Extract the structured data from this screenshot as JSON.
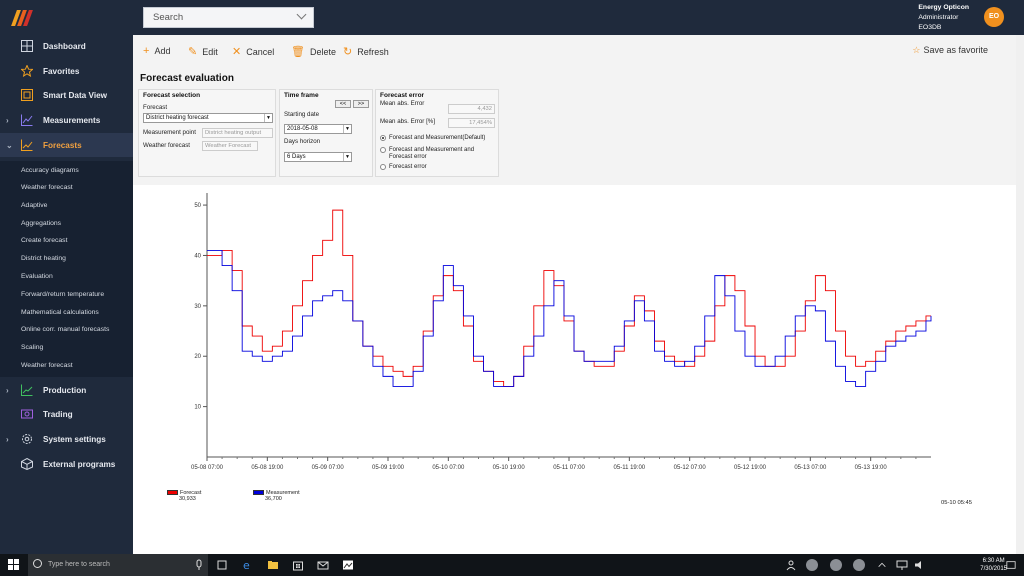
{
  "sidebar": {
    "nav": [
      {
        "label": "Dashboard",
        "icon": "dashboard-icon",
        "chevron": "",
        "active": false
      },
      {
        "label": "Favorites",
        "icon": "star-icon",
        "chevron": "",
        "active": false
      },
      {
        "label": "Smart Data View",
        "icon": "smart-view-icon",
        "chevron": "",
        "active": false
      },
      {
        "label": "Measurements",
        "icon": "measurements-icon",
        "chevron": "›",
        "active": false
      },
      {
        "label": "Forecasts",
        "icon": "forecasts-icon",
        "chevron": "⌄",
        "active": true
      }
    ],
    "sub": [
      "Accuracy diagrams",
      "Weather forecast",
      "Adaptive",
      "Aggregations",
      "Create forecast",
      "District heating",
      "Evaluation",
      "Forward/return temperature",
      "Mathematical calculations",
      "Online corr. manual forecasts",
      "Scaling",
      "Weather forecast"
    ],
    "nav2": [
      {
        "label": "Production",
        "icon": "production-icon",
        "chevron": "›"
      },
      {
        "label": "Trading",
        "icon": "trading-icon",
        "chevron": ""
      },
      {
        "label": "System settings",
        "icon": "gear-icon",
        "chevron": "›"
      },
      {
        "label": "External programs",
        "icon": "cube-icon",
        "chevron": ""
      }
    ]
  },
  "topbar": {
    "search_value": "Search",
    "user_name": "Energy Opticon",
    "user_role": "Administrator",
    "user_db": "EO3DB",
    "avatar_initials": "EO"
  },
  "toolbar": {
    "add": "Add",
    "edit": "Edit",
    "cancel": "Cancel",
    "delete": "Delete",
    "refresh": "Refresh",
    "favorite": "Save as favorite"
  },
  "page": {
    "title": "Forecast evaluation",
    "forecast_selection": {
      "title": "Forecast selection",
      "forecast_label": "Forecast",
      "forecast_value": "District heating forecast",
      "measurement_label": "Measurement point",
      "measurement_value": "District heating output",
      "weather_label": "Weather forecast",
      "weather_value": "Weather Forecast"
    },
    "time_frame": {
      "title": "Time frame",
      "prev": "<<",
      "next": ">>",
      "start_label": "Starting date",
      "start_value": "2018-05-08",
      "horizon_label": "Days horizon",
      "horizon_value": "6 Days"
    },
    "forecast_error": {
      "title": "Forecast error",
      "mae_label": "Mean abs. Error",
      "mae_value": "4,432",
      "maep_label": "Mean abs. Error [%]",
      "maep_value": "17,454%",
      "options": [
        {
          "label": "Forecast and Measurement(Default)",
          "checked": true
        },
        {
          "label": "Forecast and Measurement and Forecast error",
          "checked": false
        },
        {
          "label": "Forecast error",
          "checked": false
        }
      ]
    },
    "legend": [
      {
        "name": "Forecast",
        "value": "30,933",
        "color": "#ee0000"
      },
      {
        "name": "Measurement",
        "value": "36,700",
        "color": "#0000dd"
      }
    ],
    "cursor_time": "05-10 05:45"
  },
  "chart_data": {
    "type": "line",
    "x_tick_labels": [
      "05-08 07:00",
      "05-08 19:00",
      "05-09 07:00",
      "05-09 19:00",
      "05-10 07:00",
      "05-10 19:00",
      "05-11 07:00",
      "05-11 19:00",
      "05-12 07:00",
      "05-12 19:00",
      "05-13 07:00",
      "05-13 19:00"
    ],
    "y_ticks": [
      10,
      20,
      30,
      40,
      50
    ],
    "xlim_hours": [
      0,
      144
    ],
    "ylim": [
      0,
      52
    ],
    "colors": {
      "forecast": "#ee0000",
      "measurement": "#0000dd"
    },
    "series": [
      {
        "name": "Forecast",
        "x": [
          0,
          3,
          5,
          7,
          9,
          11,
          13,
          15,
          17,
          19,
          21,
          23,
          25,
          27,
          29,
          31,
          33,
          35,
          37,
          39,
          41,
          43,
          45,
          47,
          49,
          51,
          53,
          55,
          57,
          59,
          61,
          63,
          65,
          67,
          69,
          71,
          73,
          75,
          77,
          79,
          81,
          83,
          85,
          87,
          89,
          91,
          93,
          95,
          97,
          99,
          101,
          103,
          105,
          107,
          109,
          111,
          113,
          115,
          117,
          119,
          121,
          123,
          125,
          127,
          129,
          131,
          133,
          135,
          137,
          139,
          141,
          143,
          144
        ],
        "y": [
          40,
          41,
          37,
          26,
          24,
          21,
          22,
          25,
          30,
          35,
          40,
          43,
          49,
          40,
          27,
          22,
          20,
          18,
          17,
          16,
          18,
          25,
          32,
          36,
          33,
          26,
          19,
          17,
          15,
          14,
          16,
          22,
          30,
          37,
          34,
          27,
          21,
          19,
          18,
          18,
          21,
          26,
          32,
          29,
          23,
          20,
          19,
          18,
          20,
          23,
          30,
          36,
          33,
          26,
          20,
          18,
          18,
          20,
          25,
          31,
          36,
          33,
          25,
          20,
          18,
          19,
          21,
          23,
          25,
          26,
          27,
          28,
          28
        ]
      },
      {
        "name": "Measurement",
        "x": [
          0,
          3,
          5,
          7,
          9,
          11,
          13,
          15,
          17,
          19,
          21,
          23,
          25,
          27,
          29,
          31,
          33,
          35,
          37,
          39,
          41,
          43,
          45,
          47,
          49,
          51,
          53,
          55,
          57,
          59,
          61,
          63,
          65,
          67,
          69,
          71,
          73,
          75,
          77,
          79,
          81,
          83,
          85,
          87,
          89,
          91,
          93,
          95,
          97,
          99,
          101,
          103,
          105,
          107,
          109,
          111,
          113,
          115,
          117,
          119,
          121,
          123,
          125,
          127,
          129,
          131,
          133,
          135,
          137,
          139,
          141,
          143,
          144
        ],
        "y": [
          41,
          38,
          33,
          21,
          20,
          19,
          20,
          21,
          24,
          28,
          31,
          32,
          33,
          31,
          27,
          22,
          18,
          16,
          14,
          14,
          17,
          24,
          31,
          38,
          34,
          28,
          20,
          17,
          14,
          14,
          16,
          20,
          24,
          30,
          35,
          28,
          21,
          19,
          19,
          19,
          22,
          27,
          31,
          27,
          21,
          19,
          18,
          19,
          22,
          28,
          36,
          32,
          25,
          20,
          18,
          18,
          20,
          24,
          28,
          30,
          29,
          23,
          18,
          15,
          14,
          17,
          19,
          22,
          23,
          24,
          25,
          27,
          28
        ]
      }
    ]
  }
}
